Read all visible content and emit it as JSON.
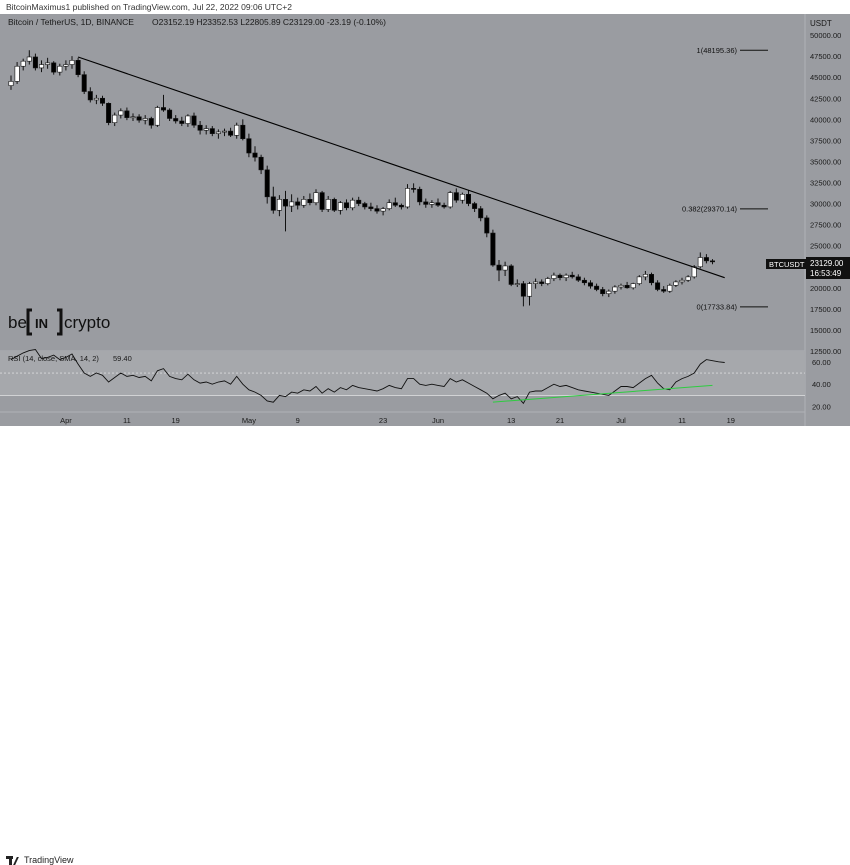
{
  "publisher_line": "BitcoinMaximus1 published on TradingView.com, Jul 22, 2022 09:06 UTC+2",
  "header": {
    "symbol_title": "Bitcoin / TetherUS, 1D, BINANCE",
    "ohlc": "O23152.19 H23352.53 L22805.89 C23129.00 -23.19 (-0.10%)"
  },
  "price_axis": {
    "currency": "USDT",
    "ticks": [
      "50000.00",
      "47500.00",
      "45000.00",
      "42500.00",
      "40000.00",
      "37500.00",
      "35000.00",
      "32500.00",
      "30000.00",
      "27500.00",
      "25000.00",
      "22500.00",
      "20000.00",
      "17500.00",
      "15000.00",
      "12500.00"
    ]
  },
  "last_price_label": {
    "symbol": "BTCUSDT",
    "price": "23129.00",
    "countdown": "16:53:49"
  },
  "fib_labels": {
    "level1": "1(48195.36)",
    "level382": "0.382(29370.14)",
    "level0": "0(17733.84)"
  },
  "rsi": {
    "label": "RSI (14, close, SMA, 14, 2)",
    "value": "59.40",
    "ticks": [
      "60.00",
      "40.00",
      "20.00"
    ]
  },
  "time_axis": {
    "ticks": [
      "Apr",
      "11",
      "19",
      "May",
      "9",
      "23",
      "Jun",
      "13",
      "21",
      "Jul",
      "11",
      "19"
    ]
  },
  "brand": {
    "be": "be",
    "in": "IN",
    "crypto": "crypto"
  },
  "footer": {
    "tradingview": "TradingView"
  },
  "colors": {
    "background": "#9a9ca1",
    "bull": "#ffffff",
    "bear": "#000000",
    "trendline": "#000000",
    "rsi_support": "#2ecc40"
  },
  "chart_data": {
    "type": "candlestick",
    "title": "Bitcoin / TetherUS, 1D, BINANCE",
    "ylim": [
      12500,
      52500
    ],
    "candles": [
      {
        "o": 44000,
        "h": 45200,
        "l": 43500,
        "c": 44500
      },
      {
        "o": 44500,
        "h": 46800,
        "l": 44200,
        "c": 46300
      },
      {
        "o": 46300,
        "h": 47200,
        "l": 45800,
        "c": 46900
      },
      {
        "o": 46900,
        "h": 48200,
        "l": 46500,
        "c": 47400
      },
      {
        "o": 47400,
        "h": 47800,
        "l": 45800,
        "c": 46100
      },
      {
        "o": 46100,
        "h": 47000,
        "l": 45600,
        "c": 46500
      },
      {
        "o": 46500,
        "h": 47300,
        "l": 46000,
        "c": 46700
      },
      {
        "o": 46700,
        "h": 46900,
        "l": 45300,
        "c": 45600
      },
      {
        "o": 45600,
        "h": 46600,
        "l": 45200,
        "c": 46300
      },
      {
        "o": 46300,
        "h": 47000,
        "l": 45800,
        "c": 46500
      },
      {
        "o": 46500,
        "h": 47500,
        "l": 46000,
        "c": 47000
      },
      {
        "o": 47000,
        "h": 47300,
        "l": 45000,
        "c": 45300
      },
      {
        "o": 45300,
        "h": 45700,
        "l": 43000,
        "c": 43300
      },
      {
        "o": 43300,
        "h": 43800,
        "l": 42000,
        "c": 42300
      },
      {
        "o": 42300,
        "h": 42900,
        "l": 41800,
        "c": 42500
      },
      {
        "o": 42500,
        "h": 42800,
        "l": 41600,
        "c": 41900
      },
      {
        "o": 41900,
        "h": 42000,
        "l": 39300,
        "c": 39600
      },
      {
        "o": 39600,
        "h": 40800,
        "l": 39200,
        "c": 40500
      },
      {
        "o": 40500,
        "h": 41300,
        "l": 40100,
        "c": 41000
      },
      {
        "o": 41000,
        "h": 41400,
        "l": 39900,
        "c": 40200
      },
      {
        "o": 40200,
        "h": 40700,
        "l": 39800,
        "c": 40300
      },
      {
        "o": 40300,
        "h": 40600,
        "l": 39600,
        "c": 39900
      },
      {
        "o": 39900,
        "h": 40500,
        "l": 39400,
        "c": 40100
      },
      {
        "o": 40100,
        "h": 40300,
        "l": 38900,
        "c": 39300
      },
      {
        "o": 39300,
        "h": 41600,
        "l": 39100,
        "c": 41400
      },
      {
        "o": 41400,
        "h": 42900,
        "l": 40900,
        "c": 41100
      },
      {
        "o": 41100,
        "h": 41300,
        "l": 39800,
        "c": 40100
      },
      {
        "o": 40100,
        "h": 40500,
        "l": 39500,
        "c": 39800
      },
      {
        "o": 39800,
        "h": 40300,
        "l": 39200,
        "c": 39500
      },
      {
        "o": 39500,
        "h": 40600,
        "l": 39100,
        "c": 40400
      },
      {
        "o": 40400,
        "h": 40800,
        "l": 39000,
        "c": 39300
      },
      {
        "o": 39300,
        "h": 39800,
        "l": 38200,
        "c": 38700
      },
      {
        "o": 38700,
        "h": 39300,
        "l": 38200,
        "c": 38900
      },
      {
        "o": 38900,
        "h": 39200,
        "l": 38000,
        "c": 38300
      },
      {
        "o": 38300,
        "h": 38800,
        "l": 37700,
        "c": 38500
      },
      {
        "o": 38500,
        "h": 38900,
        "l": 38000,
        "c": 38600
      },
      {
        "o": 38600,
        "h": 39000,
        "l": 37900,
        "c": 38100
      },
      {
        "o": 38100,
        "h": 39600,
        "l": 37700,
        "c": 39300
      },
      {
        "o": 39300,
        "h": 40000,
        "l": 37500,
        "c": 37700
      },
      {
        "o": 37700,
        "h": 38300,
        "l": 35500,
        "c": 36000
      },
      {
        "o": 36000,
        "h": 36800,
        "l": 35000,
        "c": 35500
      },
      {
        "o": 35500,
        "h": 35800,
        "l": 33500,
        "c": 34000
      },
      {
        "o": 34000,
        "h": 34500,
        "l": 30000,
        "c": 30800
      },
      {
        "o": 30800,
        "h": 32000,
        "l": 28800,
        "c": 29200
      },
      {
        "o": 29200,
        "h": 31000,
        "l": 28500,
        "c": 30500
      },
      {
        "o": 30500,
        "h": 31500,
        "l": 26700,
        "c": 29700
      },
      {
        "o": 29700,
        "h": 31100,
        "l": 29000,
        "c": 30200
      },
      {
        "o": 30200,
        "h": 30700,
        "l": 29300,
        "c": 29800
      },
      {
        "o": 29800,
        "h": 30900,
        "l": 29500,
        "c": 30500
      },
      {
        "o": 30500,
        "h": 31200,
        "l": 29800,
        "c": 30100
      },
      {
        "o": 30100,
        "h": 31700,
        "l": 29800,
        "c": 31300
      },
      {
        "o": 31300,
        "h": 31500,
        "l": 29000,
        "c": 29300
      },
      {
        "o": 29300,
        "h": 30900,
        "l": 29000,
        "c": 30500
      },
      {
        "o": 30500,
        "h": 30700,
        "l": 29000,
        "c": 29200
      },
      {
        "o": 29200,
        "h": 30300,
        "l": 28700,
        "c": 30100
      },
      {
        "o": 30100,
        "h": 30500,
        "l": 29200,
        "c": 29500
      },
      {
        "o": 29500,
        "h": 30700,
        "l": 29200,
        "c": 30400
      },
      {
        "o": 30400,
        "h": 30800,
        "l": 29700,
        "c": 30000
      },
      {
        "o": 30000,
        "h": 30200,
        "l": 29300,
        "c": 29600
      },
      {
        "o": 29600,
        "h": 30100,
        "l": 29100,
        "c": 29400
      },
      {
        "o": 29400,
        "h": 29800,
        "l": 28800,
        "c": 29100
      },
      {
        "o": 29100,
        "h": 29600,
        "l": 28600,
        "c": 29400
      },
      {
        "o": 29400,
        "h": 30500,
        "l": 29200,
        "c": 30100
      },
      {
        "o": 30100,
        "h": 30700,
        "l": 29600,
        "c": 29800
      },
      {
        "o": 29800,
        "h": 30000,
        "l": 29300,
        "c": 29600
      },
      {
        "o": 29600,
        "h": 32300,
        "l": 29400,
        "c": 31800
      },
      {
        "o": 31800,
        "h": 32400,
        "l": 31300,
        "c": 31700
      },
      {
        "o": 31700,
        "h": 32000,
        "l": 29800,
        "c": 30200
      },
      {
        "o": 30200,
        "h": 30600,
        "l": 29500,
        "c": 29900
      },
      {
        "o": 29900,
        "h": 30400,
        "l": 29500,
        "c": 30100
      },
      {
        "o": 30100,
        "h": 30600,
        "l": 29600,
        "c": 29800
      },
      {
        "o": 29800,
        "h": 30100,
        "l": 29400,
        "c": 29600
      },
      {
        "o": 29600,
        "h": 31500,
        "l": 29400,
        "c": 31300
      },
      {
        "o": 31300,
        "h": 31800,
        "l": 30100,
        "c": 30400
      },
      {
        "o": 30400,
        "h": 31300,
        "l": 30000,
        "c": 31100
      },
      {
        "o": 31100,
        "h": 31600,
        "l": 29700,
        "c": 30000
      },
      {
        "o": 30000,
        "h": 30200,
        "l": 29000,
        "c": 29400
      },
      {
        "o": 29400,
        "h": 29700,
        "l": 27900,
        "c": 28300
      },
      {
        "o": 28300,
        "h": 28600,
        "l": 26000,
        "c": 26500
      },
      {
        "o": 26500,
        "h": 26900,
        "l": 22500,
        "c": 22700
      },
      {
        "o": 22700,
        "h": 23300,
        "l": 20800,
        "c": 22100
      },
      {
        "o": 22100,
        "h": 23100,
        "l": 21400,
        "c": 22600
      },
      {
        "o": 22600,
        "h": 22800,
        "l": 20200,
        "c": 20400
      },
      {
        "o": 20400,
        "h": 21000,
        "l": 20100,
        "c": 20500
      },
      {
        "o": 20500,
        "h": 20800,
        "l": 17800,
        "c": 19000
      },
      {
        "o": 19000,
        "h": 20700,
        "l": 17900,
        "c": 20500
      },
      {
        "o": 20500,
        "h": 21100,
        "l": 19900,
        "c": 20700
      },
      {
        "o": 20700,
        "h": 21000,
        "l": 20200,
        "c": 20500
      },
      {
        "o": 20500,
        "h": 21300,
        "l": 20300,
        "c": 21100
      },
      {
        "o": 21100,
        "h": 21800,
        "l": 20800,
        "c": 21500
      },
      {
        "o": 21500,
        "h": 21700,
        "l": 20900,
        "c": 21200
      },
      {
        "o": 21200,
        "h": 21700,
        "l": 20800,
        "c": 21500
      },
      {
        "o": 21500,
        "h": 21900,
        "l": 21100,
        "c": 21300
      },
      {
        "o": 21300,
        "h": 21600,
        "l": 20700,
        "c": 20900
      },
      {
        "o": 20900,
        "h": 21200,
        "l": 20300,
        "c": 20600
      },
      {
        "o": 20600,
        "h": 20900,
        "l": 19900,
        "c": 20200
      },
      {
        "o": 20200,
        "h": 20500,
        "l": 19600,
        "c": 19800
      },
      {
        "o": 19800,
        "h": 20100,
        "l": 19000,
        "c": 19300
      },
      {
        "o": 19300,
        "h": 19800,
        "l": 18900,
        "c": 19600
      },
      {
        "o": 19600,
        "h": 20300,
        "l": 19300,
        "c": 20100
      },
      {
        "o": 20100,
        "h": 20500,
        "l": 19800,
        "c": 20300
      },
      {
        "o": 20300,
        "h": 20700,
        "l": 19900,
        "c": 20000
      },
      {
        "o": 20000,
        "h": 20600,
        "l": 19800,
        "c": 20500
      },
      {
        "o": 20500,
        "h": 21500,
        "l": 20300,
        "c": 21300
      },
      {
        "o": 21300,
        "h": 22000,
        "l": 20900,
        "c": 21600
      },
      {
        "o": 21600,
        "h": 21800,
        "l": 20300,
        "c": 20600
      },
      {
        "o": 20600,
        "h": 20900,
        "l": 19600,
        "c": 19800
      },
      {
        "o": 19800,
        "h": 20200,
        "l": 19400,
        "c": 19600
      },
      {
        "o": 19600,
        "h": 20500,
        "l": 19400,
        "c": 20300
      },
      {
        "o": 20300,
        "h": 20900,
        "l": 20100,
        "c": 20700
      },
      {
        "o": 20700,
        "h": 21200,
        "l": 20400,
        "c": 20900
      },
      {
        "o": 20900,
        "h": 21500,
        "l": 20700,
        "c": 21300
      },
      {
        "o": 21300,
        "h": 22700,
        "l": 21100,
        "c": 22500
      },
      {
        "o": 22500,
        "h": 24200,
        "l": 22300,
        "c": 23600
      },
      {
        "o": 23600,
        "h": 24000,
        "l": 22900,
        "c": 23200
      },
      {
        "o": 23200,
        "h": 23400,
        "l": 22800,
        "c": 23129
      }
    ],
    "trendline": {
      "from": {
        "index": 11,
        "price": 47400
      },
      "to": {
        "index": 117,
        "price": 21200
      }
    },
    "fib_levels": [
      {
        "level": "1",
        "price": 48195.36
      },
      {
        "level": "0.382",
        "price": 29370.14
      },
      {
        "level": "0",
        "price": 17733.84
      }
    ],
    "rsi_series": [
      62,
      65,
      68,
      70,
      71,
      63,
      64,
      66,
      62,
      64,
      67,
      58,
      50,
      47,
      50,
      48,
      42,
      46,
      50,
      47,
      48,
      46,
      47,
      43,
      52,
      54,
      47,
      45,
      44,
      49,
      44,
      41,
      42,
      40,
      42,
      43,
      40,
      47,
      40,
      35,
      33,
      30,
      25,
      24,
      30,
      29,
      33,
      32,
      35,
      34,
      38,
      32,
      36,
      33,
      37,
      35,
      39,
      37,
      36,
      35,
      34,
      36,
      39,
      37,
      36,
      45,
      45,
      40,
      39,
      40,
      39,
      38,
      45,
      42,
      44,
      41,
      38,
      35,
      32,
      27,
      30,
      32,
      27,
      29,
      23,
      33,
      34,
      34,
      37,
      40,
      38,
      39,
      37,
      35,
      34,
      33,
      32,
      31,
      30,
      34,
      38,
      38,
      37,
      41,
      45,
      48,
      41,
      36,
      35,
      42,
      45,
      47,
      50,
      58,
      62,
      61,
      60,
      59.4
    ],
    "rsi_support": {
      "from": {
        "index": 79,
        "rsi": 24
      },
      "to": {
        "index": 115,
        "rsi": 39
      }
    },
    "rsi_ylim": [
      17,
      67
    ],
    "rsi_band": [
      30,
      70
    ],
    "x_ticks": [
      {
        "label": "Apr",
        "index": 9
      },
      {
        "label": "11",
        "index": 19
      },
      {
        "label": "19",
        "index": 27
      },
      {
        "label": "May",
        "index": 39
      },
      {
        "label": "9",
        "index": 47
      },
      {
        "label": "23",
        "index": 61
      },
      {
        "label": "Jun",
        "index": 70
      },
      {
        "label": "13",
        "index": 82
      },
      {
        "label": "21",
        "index": 90
      },
      {
        "label": "Jul",
        "index": 100
      },
      {
        "label": "11",
        "index": 110
      },
      {
        "label": "19",
        "index": 118
      }
    ]
  }
}
